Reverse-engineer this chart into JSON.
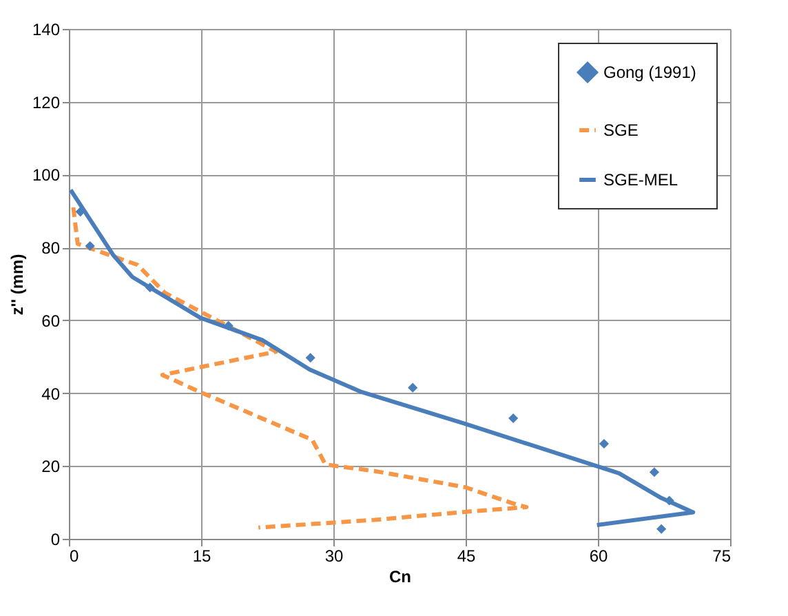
{
  "chart_data": {
    "type": "line",
    "xlabel": "Cn",
    "ylabel": "z'' (mm)",
    "xlim": [
      0,
      75
    ],
    "xticks": [
      0,
      15,
      30,
      45,
      60,
      75
    ],
    "ylim": [
      0,
      140
    ],
    "yticks": [
      0,
      20,
      40,
      60,
      80,
      100,
      120,
      140
    ],
    "grid": true,
    "legend": "top right",
    "series": [
      {
        "name": "Gong (1991)",
        "type": "scatter",
        "marker": "diamond",
        "color": "#4a7ebb",
        "x": [
          1.3,
          2.4,
          9.2,
          18.1,
          27.4,
          39,
          50.4,
          60.7,
          66.4,
          68.1,
          67.2
        ],
        "values": [
          89.8,
          80.4,
          69,
          58.5,
          49.7,
          41.5,
          33.1,
          26.1,
          18.3,
          10.5,
          2.7
        ]
      },
      {
        "name": "SGE",
        "line_style": "dashed",
        "color": "#f79646",
        "x": [
          0.5,
          1,
          7.8,
          10.9,
          22.5,
          23.5,
          10.6,
          14.9,
          27.6,
          29.1,
          34.7,
          44.9,
          50.9,
          51.9,
          44.9,
          34.7,
          21.5
        ],
        "values": [
          91,
          81,
          75.2,
          67.5,
          52.7,
          51.4,
          45,
          40.3,
          27.2,
          20.4,
          18.6,
          14.2,
          9.3,
          8.7,
          7.4,
          5.2,
          3.1
        ]
      },
      {
        "name": "SGE-MEL",
        "line_style": "solid",
        "color": "#4a7ebb",
        "x": [
          0.2,
          5,
          7.2,
          14.9,
          22,
          27.3,
          33.2,
          44.9,
          60.1,
          62.4,
          67.2,
          70.8,
          59.9
        ],
        "values": [
          95.8,
          78,
          71.9,
          60.7,
          54.5,
          46.5,
          40.3,
          31.6,
          19.8,
          18,
          11.2,
          7.3,
          3.8
        ]
      }
    ]
  }
}
